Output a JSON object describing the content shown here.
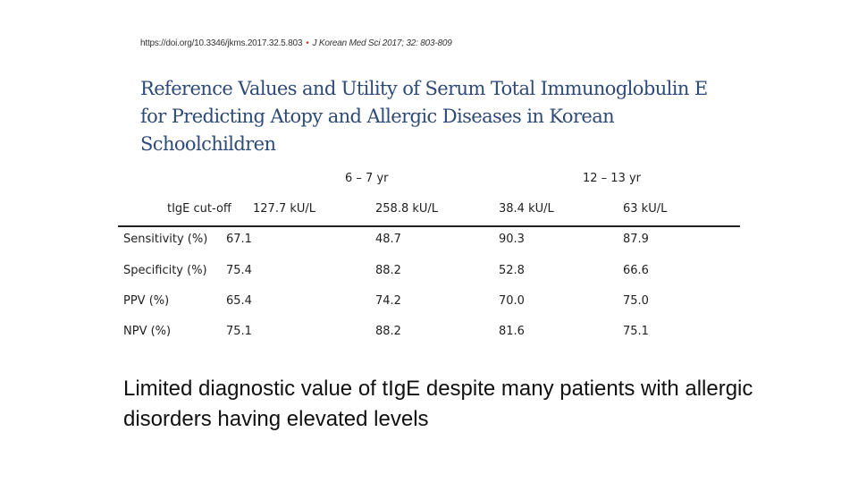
{
  "citation": {
    "doi": "https://doi.org/10.3346/jkms.2017.32.5.803",
    "separator": "•",
    "journal": "J Korean Med Sci 2017; 32: 803-809"
  },
  "paper_title_lines": [
    "Reference Values and Utility of Serum Total Immunoglobulin E",
    "for Predicting Atopy and Allergic Diseases in Korean",
    "Schoolchildren"
  ],
  "table": {
    "group_headers": [
      "6 – 7 yr",
      "12 – 13 yr"
    ],
    "cutoff_label": "tIgE cut-off",
    "cutoffs": [
      "127.7 kU/L",
      "258.8 kU/L",
      "38.4 kU/L",
      "63 kU/L"
    ],
    "rows": [
      {
        "label": "Sensitivity (%)",
        "values": [
          "67.1",
          "48.7",
          "90.3",
          "87.9"
        ]
      },
      {
        "label": "Specificity (%)",
        "values": [
          "75.4",
          "88.2",
          "52.8",
          "66.6"
        ]
      },
      {
        "label": "PPV (%)",
        "values": [
          "65.4",
          "74.2",
          "70.0",
          "75.0"
        ]
      },
      {
        "label": "NPV (%)",
        "values": [
          "75.1",
          "88.2",
          "81.6",
          "75.1"
        ]
      }
    ]
  },
  "summary": "Limited diagnostic value of tIgE despite many patients with allergic disorders having elevated levels"
}
